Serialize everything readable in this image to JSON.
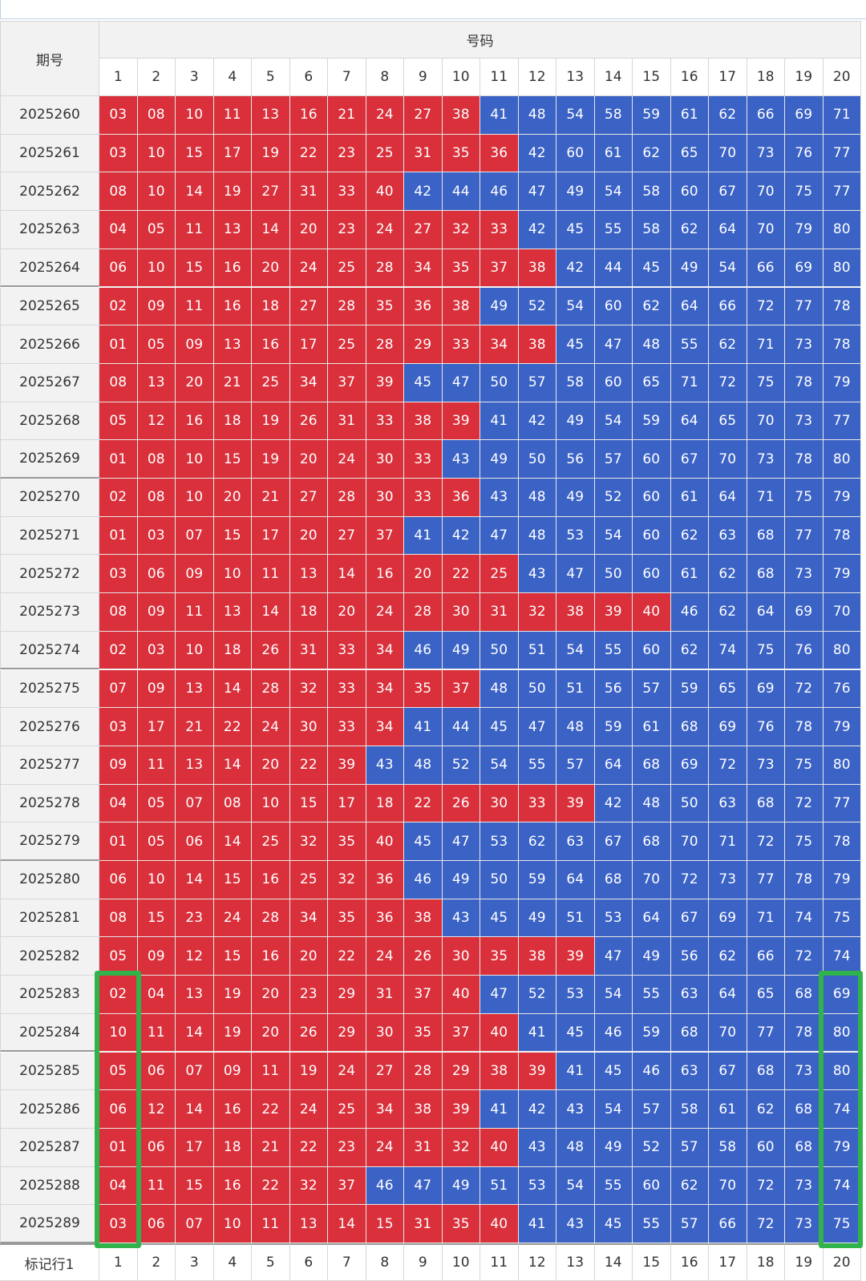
{
  "header": {
    "period": "期号",
    "numbers": "号码",
    "columns": [
      1,
      2,
      3,
      4,
      5,
      6,
      7,
      8,
      9,
      10,
      11,
      12,
      13,
      14,
      15,
      16,
      17,
      18,
      19,
      20
    ]
  },
  "rows": [
    {
      "period": "2025260",
      "numbers": [
        "03",
        "08",
        "10",
        "11",
        "13",
        "16",
        "21",
        "24",
        "27",
        "38",
        "41",
        "48",
        "54",
        "58",
        "59",
        "61",
        "62",
        "66",
        "69",
        "71"
      ]
    },
    {
      "period": "2025261",
      "numbers": [
        "03",
        "10",
        "15",
        "17",
        "19",
        "22",
        "23",
        "25",
        "31",
        "35",
        "36",
        "42",
        "60",
        "61",
        "62",
        "65",
        "70",
        "73",
        "76",
        "77"
      ]
    },
    {
      "period": "2025262",
      "numbers": [
        "08",
        "10",
        "14",
        "19",
        "27",
        "31",
        "33",
        "40",
        "42",
        "44",
        "46",
        "47",
        "49",
        "54",
        "58",
        "60",
        "67",
        "70",
        "75",
        "77"
      ]
    },
    {
      "period": "2025263",
      "numbers": [
        "04",
        "05",
        "11",
        "13",
        "14",
        "20",
        "23",
        "24",
        "27",
        "32",
        "33",
        "42",
        "45",
        "55",
        "58",
        "62",
        "64",
        "70",
        "79",
        "80"
      ]
    },
    {
      "period": "2025264",
      "numbers": [
        "06",
        "10",
        "15",
        "16",
        "20",
        "24",
        "25",
        "28",
        "34",
        "35",
        "37",
        "38",
        "42",
        "44",
        "45",
        "49",
        "54",
        "66",
        "69",
        "80"
      ]
    },
    {
      "period": "2025265",
      "numbers": [
        "02",
        "09",
        "11",
        "16",
        "18",
        "27",
        "28",
        "35",
        "36",
        "38",
        "49",
        "52",
        "54",
        "60",
        "62",
        "64",
        "66",
        "72",
        "77",
        "78"
      ]
    },
    {
      "period": "2025266",
      "numbers": [
        "01",
        "05",
        "09",
        "13",
        "16",
        "17",
        "25",
        "28",
        "29",
        "33",
        "34",
        "38",
        "45",
        "47",
        "48",
        "55",
        "62",
        "71",
        "73",
        "78"
      ]
    },
    {
      "period": "2025267",
      "numbers": [
        "08",
        "13",
        "20",
        "21",
        "25",
        "34",
        "37",
        "39",
        "45",
        "47",
        "50",
        "57",
        "58",
        "60",
        "65",
        "71",
        "72",
        "75",
        "78",
        "79"
      ]
    },
    {
      "period": "2025268",
      "numbers": [
        "05",
        "12",
        "16",
        "18",
        "19",
        "26",
        "31",
        "33",
        "38",
        "39",
        "41",
        "42",
        "49",
        "54",
        "59",
        "64",
        "65",
        "70",
        "73",
        "77"
      ]
    },
    {
      "period": "2025269",
      "numbers": [
        "01",
        "08",
        "10",
        "15",
        "19",
        "20",
        "24",
        "30",
        "33",
        "43",
        "49",
        "50",
        "56",
        "57",
        "60",
        "67",
        "70",
        "73",
        "78",
        "80"
      ]
    },
    {
      "period": "2025270",
      "numbers": [
        "02",
        "08",
        "10",
        "20",
        "21",
        "27",
        "28",
        "30",
        "33",
        "36",
        "43",
        "48",
        "49",
        "52",
        "60",
        "61",
        "64",
        "71",
        "75",
        "79"
      ]
    },
    {
      "period": "2025271",
      "numbers": [
        "01",
        "03",
        "07",
        "15",
        "17",
        "20",
        "27",
        "37",
        "41",
        "42",
        "47",
        "48",
        "53",
        "54",
        "60",
        "62",
        "63",
        "68",
        "77",
        "78"
      ]
    },
    {
      "period": "2025272",
      "numbers": [
        "03",
        "06",
        "09",
        "10",
        "11",
        "13",
        "14",
        "16",
        "20",
        "22",
        "25",
        "43",
        "47",
        "50",
        "60",
        "61",
        "62",
        "68",
        "73",
        "79"
      ]
    },
    {
      "period": "2025273",
      "numbers": [
        "08",
        "09",
        "11",
        "13",
        "14",
        "18",
        "20",
        "24",
        "28",
        "30",
        "31",
        "32",
        "38",
        "39",
        "40",
        "46",
        "62",
        "64",
        "69",
        "70"
      ]
    },
    {
      "period": "2025274",
      "numbers": [
        "02",
        "03",
        "10",
        "18",
        "26",
        "31",
        "33",
        "34",
        "46",
        "49",
        "50",
        "51",
        "54",
        "55",
        "60",
        "62",
        "74",
        "75",
        "76",
        "80"
      ]
    },
    {
      "period": "2025275",
      "numbers": [
        "07",
        "09",
        "13",
        "14",
        "28",
        "32",
        "33",
        "34",
        "35",
        "37",
        "48",
        "50",
        "51",
        "56",
        "57",
        "59",
        "65",
        "69",
        "72",
        "76"
      ]
    },
    {
      "period": "2025276",
      "numbers": [
        "03",
        "17",
        "21",
        "22",
        "24",
        "30",
        "33",
        "34",
        "41",
        "44",
        "45",
        "47",
        "48",
        "59",
        "61",
        "68",
        "69",
        "76",
        "78",
        "79"
      ]
    },
    {
      "period": "2025277",
      "numbers": [
        "09",
        "11",
        "13",
        "14",
        "20",
        "22",
        "39",
        "43",
        "48",
        "52",
        "54",
        "55",
        "57",
        "64",
        "68",
        "69",
        "72",
        "73",
        "75",
        "80"
      ]
    },
    {
      "period": "2025278",
      "numbers": [
        "04",
        "05",
        "07",
        "08",
        "10",
        "15",
        "17",
        "18",
        "22",
        "26",
        "30",
        "33",
        "39",
        "42",
        "48",
        "50",
        "63",
        "68",
        "72",
        "77"
      ]
    },
    {
      "period": "2025279",
      "numbers": [
        "01",
        "05",
        "06",
        "14",
        "25",
        "32",
        "35",
        "40",
        "45",
        "47",
        "53",
        "62",
        "63",
        "67",
        "68",
        "70",
        "71",
        "72",
        "75",
        "78"
      ]
    },
    {
      "period": "2025280",
      "numbers": [
        "06",
        "10",
        "14",
        "15",
        "16",
        "25",
        "32",
        "36",
        "46",
        "49",
        "50",
        "59",
        "64",
        "68",
        "70",
        "72",
        "73",
        "77",
        "78",
        "79"
      ]
    },
    {
      "period": "2025281",
      "numbers": [
        "08",
        "15",
        "23",
        "24",
        "28",
        "34",
        "35",
        "36",
        "38",
        "43",
        "45",
        "49",
        "51",
        "53",
        "64",
        "67",
        "69",
        "71",
        "74",
        "75"
      ]
    },
    {
      "period": "2025282",
      "numbers": [
        "05",
        "09",
        "12",
        "15",
        "16",
        "20",
        "22",
        "24",
        "26",
        "30",
        "35",
        "38",
        "39",
        "47",
        "49",
        "56",
        "62",
        "66",
        "72",
        "74"
      ]
    },
    {
      "period": "2025283",
      "numbers": [
        "02",
        "04",
        "13",
        "19",
        "20",
        "23",
        "29",
        "31",
        "37",
        "40",
        "47",
        "52",
        "53",
        "54",
        "55",
        "63",
        "64",
        "65",
        "68",
        "69"
      ]
    },
    {
      "period": "2025284",
      "numbers": [
        "10",
        "11",
        "14",
        "19",
        "20",
        "26",
        "29",
        "30",
        "35",
        "37",
        "40",
        "41",
        "45",
        "46",
        "59",
        "68",
        "70",
        "77",
        "78",
        "80"
      ]
    },
    {
      "period": "2025285",
      "numbers": [
        "05",
        "06",
        "07",
        "09",
        "11",
        "19",
        "24",
        "27",
        "28",
        "29",
        "38",
        "39",
        "41",
        "45",
        "46",
        "63",
        "67",
        "68",
        "73",
        "80"
      ]
    },
    {
      "period": "2025286",
      "numbers": [
        "06",
        "12",
        "14",
        "16",
        "22",
        "24",
        "25",
        "34",
        "38",
        "39",
        "41",
        "42",
        "43",
        "54",
        "57",
        "58",
        "61",
        "62",
        "68",
        "74"
      ]
    },
    {
      "period": "2025287",
      "numbers": [
        "01",
        "06",
        "17",
        "18",
        "21",
        "22",
        "23",
        "24",
        "31",
        "32",
        "40",
        "43",
        "48",
        "49",
        "52",
        "57",
        "58",
        "60",
        "68",
        "79"
      ]
    },
    {
      "period": "2025288",
      "numbers": [
        "04",
        "11",
        "15",
        "16",
        "22",
        "32",
        "37",
        "46",
        "47",
        "49",
        "51",
        "53",
        "54",
        "55",
        "60",
        "62",
        "70",
        "72",
        "73",
        "74"
      ]
    },
    {
      "period": "2025289",
      "numbers": [
        "03",
        "06",
        "07",
        "10",
        "11",
        "13",
        "14",
        "15",
        "31",
        "35",
        "40",
        "41",
        "43",
        "45",
        "55",
        "57",
        "66",
        "72",
        "73",
        "75"
      ]
    }
  ],
  "footer": {
    "label": "标记行1",
    "columns": [
      1,
      2,
      3,
      4,
      5,
      6,
      7,
      8,
      9,
      10,
      11,
      12,
      13,
      14,
      15,
      16,
      17,
      18,
      19,
      20
    ]
  }
}
